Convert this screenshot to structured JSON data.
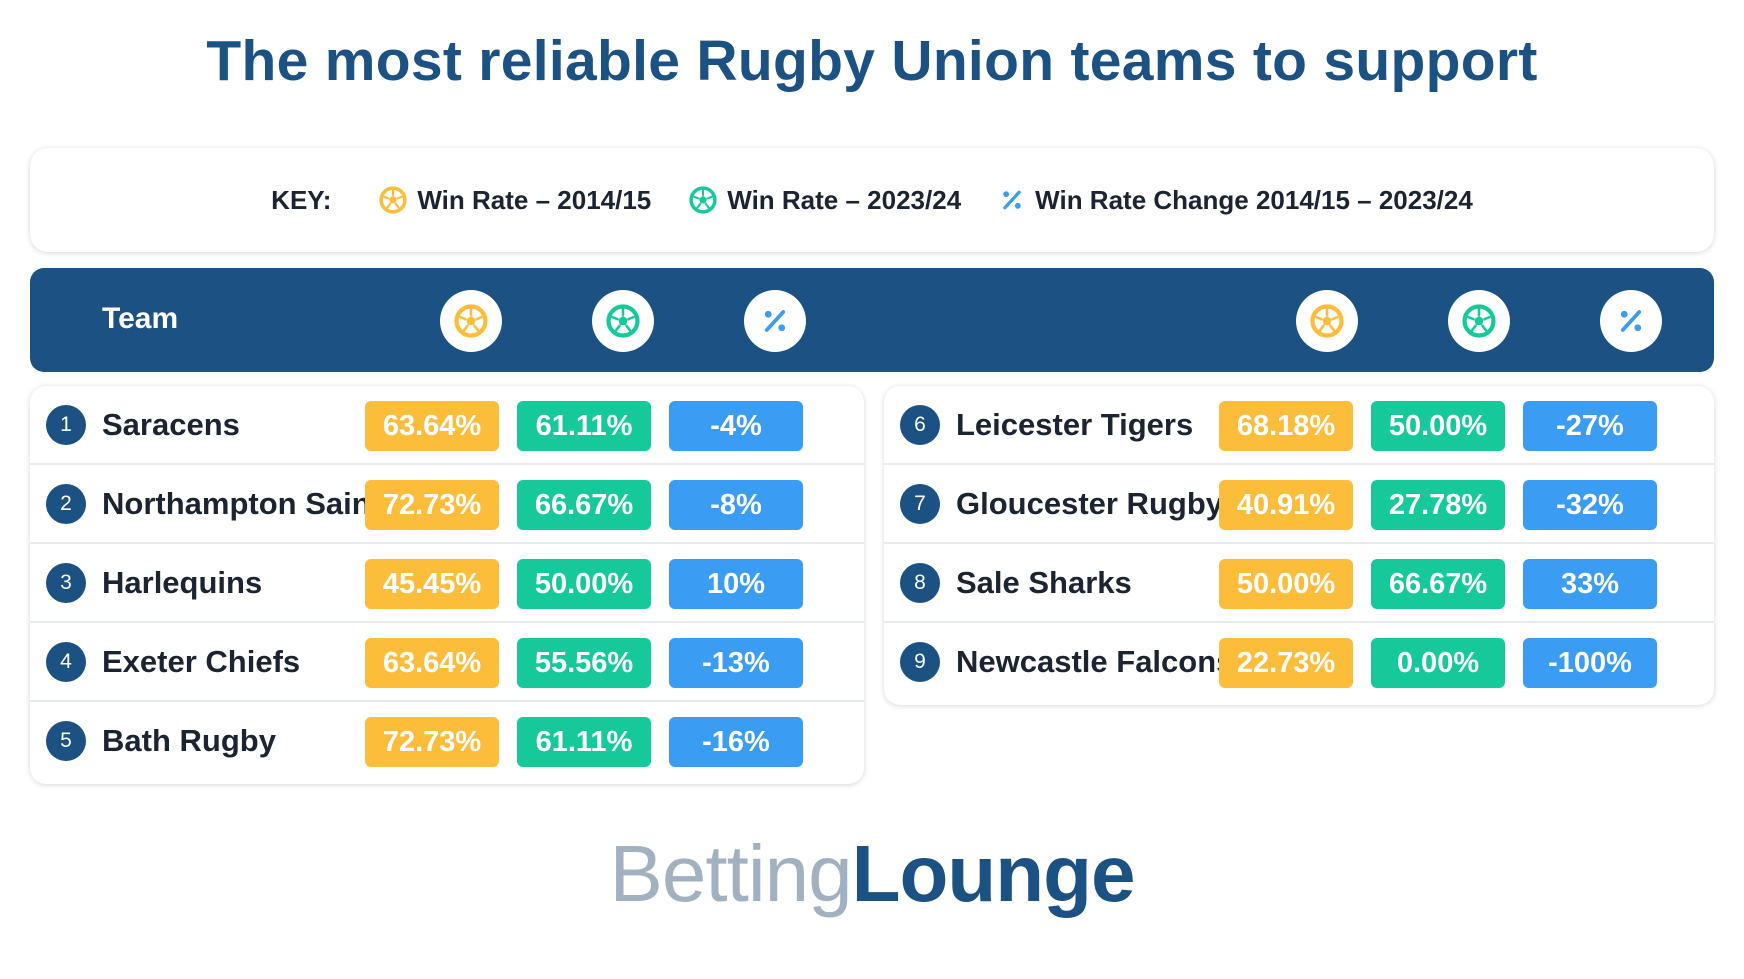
{
  "title": "The most reliable Rugby Union teams to support",
  "key": {
    "label": "KEY:",
    "items": [
      {
        "icon": "yellow-football-icon",
        "text": "Win Rate – 2014/15",
        "color": "#fbbd3a"
      },
      {
        "icon": "green-football-icon",
        "text": "Win Rate – 2023/24",
        "color": "#16c99b"
      },
      {
        "icon": "percent-icon",
        "text": "Win Rate Change 2014/15 – 2023/24",
        "color": "#3b9cf3"
      }
    ]
  },
  "header": {
    "team_label": "Team"
  },
  "colors": {
    "navy": "#1c5283",
    "yellow": "#fbbd3a",
    "green": "#16c99b",
    "blue": "#3b9cf3"
  },
  "chart_data": {
    "type": "table",
    "title": "The most reliable Rugby Union teams to support",
    "columns": [
      "Team",
      "Win Rate – 2014/15",
      "Win Rate – 2023/24",
      "Win Rate Change 2014/15 – 2023/24"
    ],
    "rows": [
      {
        "rank": "1",
        "team": "Saracens",
        "win_2014": "63.64%",
        "win_2023": "61.11%",
        "change": "-4%"
      },
      {
        "rank": "2",
        "team": "Northampton Saints",
        "win_2014": "72.73%",
        "win_2023": "66.67%",
        "change": "-8%"
      },
      {
        "rank": "3",
        "team": "Harlequins",
        "win_2014": "45.45%",
        "win_2023": "50.00%",
        "change": "10%"
      },
      {
        "rank": "4",
        "team": "Exeter Chiefs",
        "win_2014": "63.64%",
        "win_2023": "55.56%",
        "change": "-13%"
      },
      {
        "rank": "5",
        "team": "Bath Rugby",
        "win_2014": "72.73%",
        "win_2023": "61.11%",
        "change": "-16%"
      },
      {
        "rank": "6",
        "team": "Leicester Tigers",
        "win_2014": "68.18%",
        "win_2023": "50.00%",
        "change": "-27%"
      },
      {
        "rank": "7",
        "team": "Gloucester Rugby",
        "win_2014": "40.91%",
        "win_2023": "27.78%",
        "change": "-32%"
      },
      {
        "rank": "8",
        "team": "Sale Sharks",
        "win_2014": "50.00%",
        "win_2023": "66.67%",
        "change": "33%"
      },
      {
        "rank": "9",
        "team": "Newcastle Falcons",
        "win_2014": "22.73%",
        "win_2023": "0.00%",
        "change": "-100%"
      }
    ]
  },
  "logo": {
    "part1": "Betting",
    "part2": "Lounge"
  }
}
